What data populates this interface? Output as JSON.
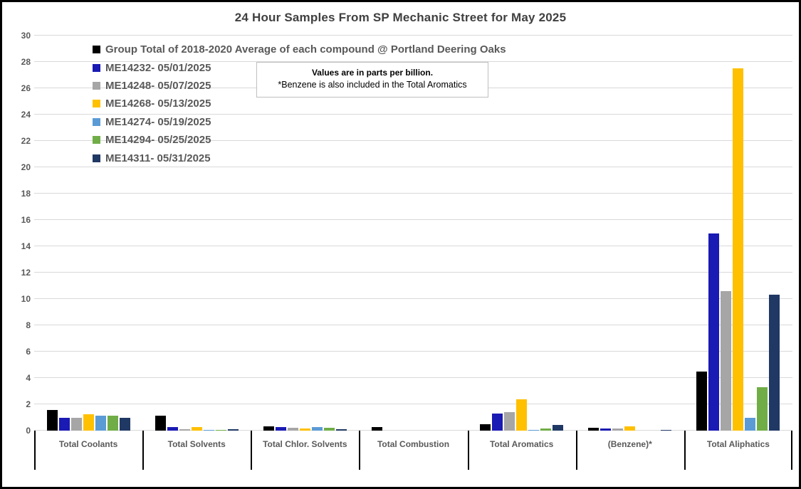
{
  "title": "24 Hour Samples From SP Mechanic Street for May 2025",
  "note": {
    "line1": "Values are in parts per billion.",
    "line2": "*Benzene is also included in the Total Aromatics"
  },
  "chart_data": {
    "type": "bar",
    "title": "24 Hour Samples From SP Mechanic Street for May 2025",
    "units": "parts per billion",
    "xlabel": "",
    "ylabel": "",
    "ylim": [
      0,
      30
    ],
    "ytick_step": 2,
    "grid": true,
    "legend_position": "inside-top-left",
    "categories": [
      "Total Coolants",
      "Total Solvents",
      "Total Chlor. Solvents",
      "Total Combustion",
      "Total Aromatics",
      "(Benzene)*",
      "Total Aliphatics"
    ],
    "series": [
      {
        "name": "Group Total of 2018-2020 Average of each compound @ Portland Deering Oaks",
        "color": "#000000",
        "values": [
          1.55,
          1.15,
          0.35,
          0.25,
          0.5,
          0.2,
          4.5
        ]
      },
      {
        "name": "ME14232- 05/01/2025",
        "color": "#1a1ab4",
        "values": [
          0.95,
          0.25,
          0.27,
          0,
          1.3,
          0.18,
          15
        ]
      },
      {
        "name": "ME14248- 05/07/2025",
        "color": "#a6a6a6",
        "values": [
          1.0,
          0.12,
          0.2,
          0,
          1.4,
          0.16,
          10.6
        ]
      },
      {
        "name": "ME14268- 05/13/2025",
        "color": "#ffc000",
        "values": [
          1.25,
          0.25,
          0.18,
          0,
          2.4,
          0.3,
          27.5
        ]
      },
      {
        "name": "ME14274- 05/19/2025",
        "color": "#5b9bd5",
        "values": [
          1.15,
          0.05,
          0.28,
          0,
          0.05,
          0,
          1.0
        ]
      },
      {
        "name": "ME14294- 05/25/2025",
        "color": "#70ad47",
        "values": [
          1.15,
          0.08,
          0.22,
          0,
          0.15,
          0,
          3.3
        ]
      },
      {
        "name": "ME14311- 05/31/2025",
        "color": "#203864",
        "values": [
          1.0,
          0.12,
          0.1,
          0,
          0.45,
          0.05,
          10.3
        ]
      }
    ]
  }
}
